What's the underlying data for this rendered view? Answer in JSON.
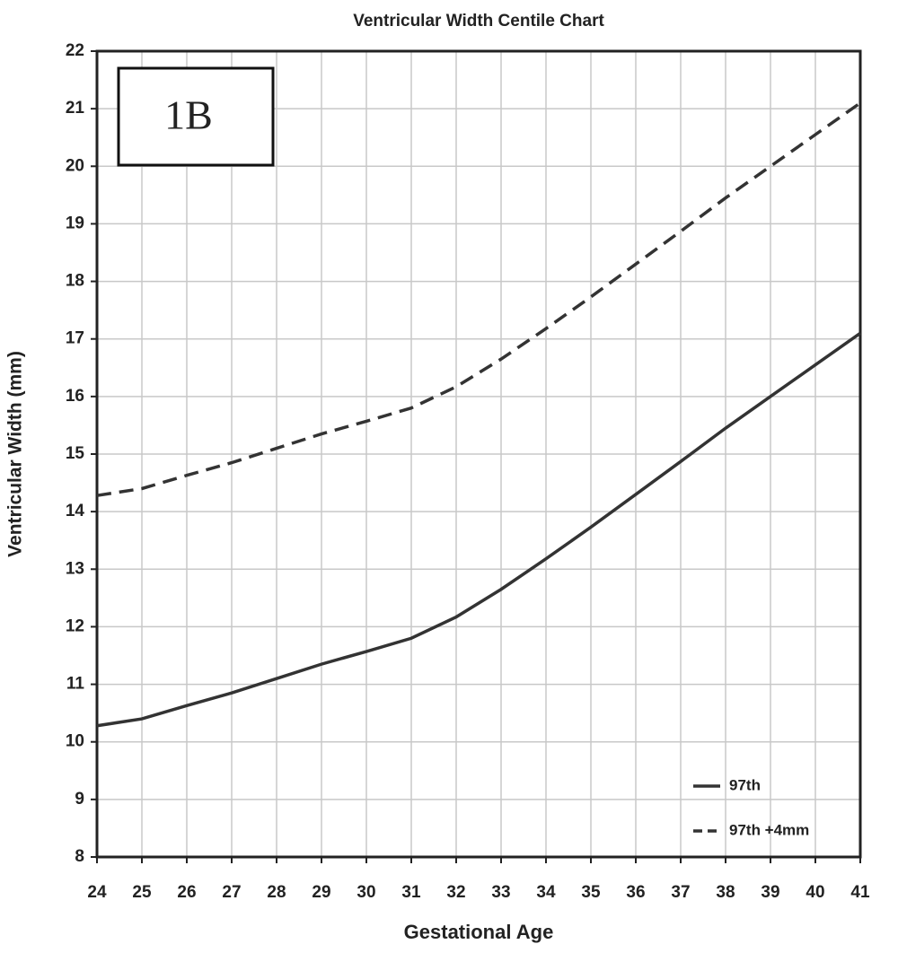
{
  "chart_data": {
    "type": "line",
    "title": "Ventricular Width Centile Chart",
    "x_label": "Gestational Age",
    "y_label": "Ventricular Width (mm)",
    "annotation": "1B",
    "x": [
      24,
      25,
      26,
      27,
      28,
      29,
      30,
      31,
      32,
      33,
      34,
      35,
      36,
      37,
      38,
      39,
      40,
      41
    ],
    "series": [
      {
        "name": "97th",
        "color": "#333333",
        "dash": false,
        "values": [
          10.28,
          10.4,
          10.63,
          10.85,
          11.1,
          11.35,
          11.57,
          11.8,
          12.17,
          12.65,
          13.18,
          13.73,
          14.3,
          14.87,
          15.45,
          16.0,
          16.55,
          17.1
        ]
      },
      {
        "name": "97th +4mm",
        "color": "#333333",
        "dash": true,
        "values": [
          14.28,
          14.4,
          14.63,
          14.85,
          15.1,
          15.35,
          15.57,
          15.8,
          16.17,
          16.65,
          17.18,
          17.73,
          18.3,
          18.87,
          19.45,
          20.0,
          20.55,
          21.1
        ]
      }
    ],
    "xlim": [
      24,
      41
    ],
    "xticks": [
      24,
      25,
      26,
      27,
      28,
      29,
      30,
      31,
      32,
      33,
      34,
      35,
      36,
      37,
      38,
      39,
      40,
      41
    ],
    "ylim": [
      8,
      22
    ],
    "yticks": [
      8,
      9,
      10,
      11,
      12,
      13,
      14,
      15,
      16,
      17,
      18,
      19,
      20,
      21,
      22
    ],
    "grid": true,
    "legend": "lower right"
  }
}
